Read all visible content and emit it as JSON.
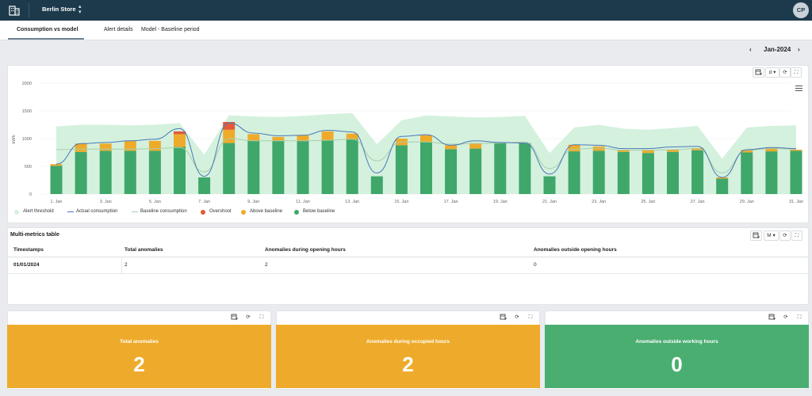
{
  "header": {
    "store": "Berlin Store",
    "avatar": "CP",
    "icon": "building-icon"
  },
  "tabs": [
    {
      "label": "Consumption vs model"
    },
    {
      "label": "Alert details"
    },
    {
      "label": "Model - Baseline period"
    }
  ],
  "month": {
    "label": "Jan-2024"
  },
  "chart_toolbar": {
    "interval": "d"
  },
  "chart_data": {
    "type": "bar",
    "ylabel": "kWh",
    "ylim": [
      0,
      2000
    ],
    "yticks": [
      "0",
      "500",
      "1000",
      "1500",
      "2000"
    ],
    "xticks": [
      "1. Jan",
      "3. Jan",
      "5. Jan",
      "7. Jan",
      "9. Jan",
      "11. Jan",
      "13. Jan",
      "15. Jan",
      "17. Jan",
      "19. Jan",
      "21. Jan",
      "23. Jan",
      "25. Jan",
      "27. Jan",
      "29. Jan",
      "31. Jan"
    ],
    "categories": [
      "1. Jan",
      "2. Jan",
      "3. Jan",
      "4. Jan",
      "5. Jan",
      "6. Jan",
      "7. Jan",
      "8. Jan",
      "9. Jan",
      "10. Jan",
      "11. Jan",
      "12. Jan",
      "13. Jan",
      "14. Jan",
      "15. Jan",
      "16. Jan",
      "17. Jan",
      "18. Jan",
      "19. Jan",
      "20. Jan",
      "21. Jan",
      "22. Jan",
      "23. Jan",
      "24. Jan",
      "25. Jan",
      "26. Jan",
      "27. Jan",
      "28. Jan",
      "29. Jan",
      "30. Jan",
      "31. Jan"
    ],
    "series": [
      {
        "name": "Alert threshold",
        "values": [
          1220,
          1250,
          1250,
          1240,
          1250,
          1280,
          710,
          1420,
          1400,
          1390,
          1410,
          1440,
          1460,
          900,
          1330,
          1420,
          1400,
          1380,
          1390,
          1410,
          740,
          1200,
          1250,
          1180,
          1160,
          1190,
          1230,
          640,
          1200,
          1230,
          1240
        ]
      },
      {
        "name": "Actual consumption",
        "values": [
          540,
          910,
          930,
          960,
          990,
          1180,
          320,
          1280,
          1100,
          1050,
          1060,
          1150,
          1120,
          380,
          1040,
          1070,
          880,
          960,
          930,
          920,
          360,
          890,
          880,
          820,
          820,
          850,
          860,
          300,
          800,
          840,
          820
        ]
      },
      {
        "name": "Baseline consumption",
        "values": [
          800,
          810,
          810,
          810,
          820,
          840,
          400,
          1000,
          960,
          960,
          960,
          970,
          990,
          600,
          940,
          940,
          900,
          910,
          920,
          940,
          460,
          810,
          830,
          790,
          790,
          800,
          820,
          380,
          790,
          820,
          810
        ]
      },
      {
        "name": "Overshoot",
        "values": [
          0,
          0,
          0,
          0,
          0,
          50,
          0,
          140,
          0,
          0,
          0,
          0,
          0,
          0,
          0,
          0,
          0,
          0,
          0,
          0,
          0,
          0,
          0,
          0,
          0,
          0,
          0,
          0,
          0,
          0,
          0
        ]
      },
      {
        "name": "Above baseline",
        "values": [
          30,
          150,
          130,
          180,
          180,
          230,
          0,
          240,
          120,
          70,
          100,
          160,
          100,
          0,
          120,
          120,
          70,
          100,
          0,
          0,
          0,
          120,
          80,
          40,
          60,
          40,
          40,
          20,
          50,
          60,
          20
        ]
      },
      {
        "name": "Below baseline",
        "values": [
          510,
          760,
          780,
          780,
          780,
          850,
          300,
          920,
          960,
          960,
          960,
          970,
          990,
          320,
          880,
          940,
          810,
          820,
          920,
          920,
          320,
          770,
          780,
          760,
          740,
          760,
          790,
          280,
          750,
          770,
          780
        ]
      }
    ],
    "colors": {
      "threshold": "#d4f1de",
      "actual": "#4a78b8",
      "baseline": "#a9cfa9",
      "overshoot": "#e25a3a",
      "above": "#eeab2b",
      "below": "#3fa76a"
    },
    "legend_position": "bottom-left"
  },
  "table": {
    "title": "Multi-metrics table",
    "interval": "M",
    "headers": [
      "Timestamps",
      "Total anomalies",
      "Anomalies during opening hours",
      "Anomalies outside opening hours"
    ],
    "rows": [
      [
        "01/01/2024",
        "2",
        "2",
        "0"
      ]
    ]
  },
  "cards": [
    {
      "title": "Total anomalies",
      "value": "2",
      "color": "#eeab2b"
    },
    {
      "title": "Anomalies during occupied hours",
      "value": "2",
      "color": "#eeab2b"
    },
    {
      "title": "Anomalies outside working hours",
      "value": "0",
      "color": "#4aae70"
    }
  ]
}
